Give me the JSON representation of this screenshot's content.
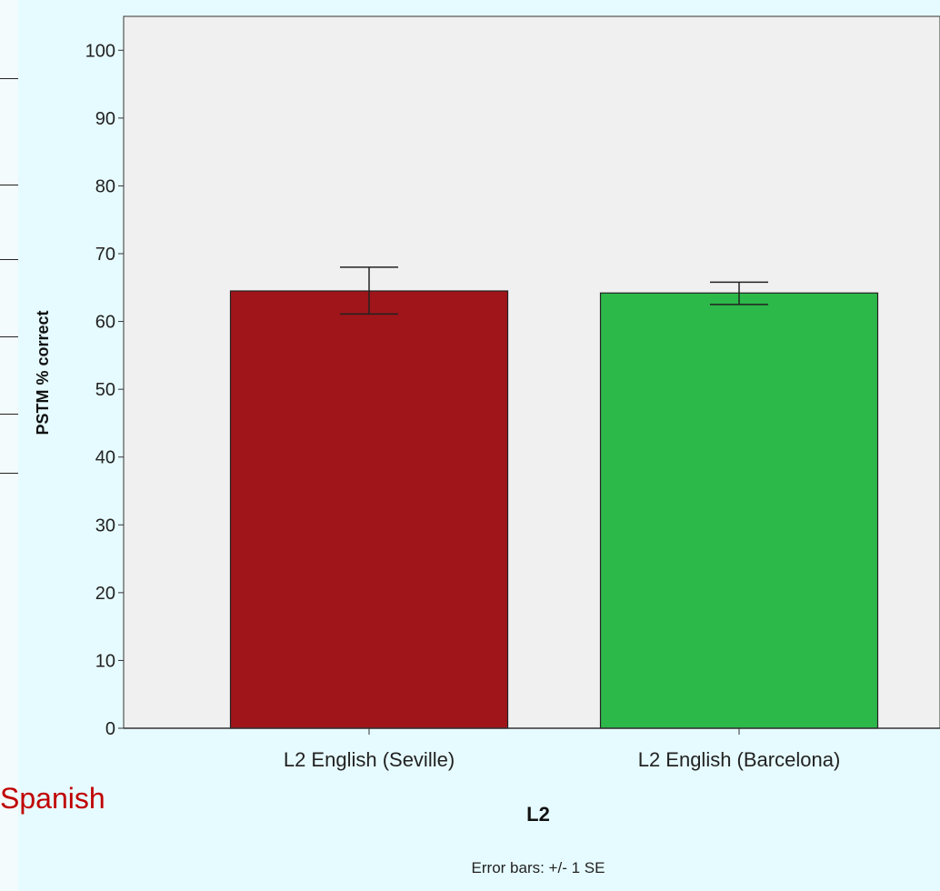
{
  "slide_text": {
    "bottom_left": "Spanish"
  },
  "colors": {
    "seville": "#a0151a",
    "barcelona": "#2db84a",
    "plot_background": "#f0f0f0",
    "page_background": "#e6fbff"
  },
  "chart_data": {
    "type": "bar",
    "categories": [
      "L2 English (Seville)",
      "L2 English (Barcelona)"
    ],
    "values": [
      64.5,
      64.2
    ],
    "error_low": [
      61.1,
      62.5
    ],
    "error_high": [
      68.0,
      65.8
    ],
    "xlabel": "L2",
    "ylabel": "PSTM % correct",
    "ylim": [
      0,
      105
    ],
    "yticks": [
      0,
      10,
      20,
      30,
      40,
      50,
      60,
      70,
      80,
      90,
      100
    ],
    "footnote": "Error bars: +/- 1 SE",
    "grid": false
  }
}
